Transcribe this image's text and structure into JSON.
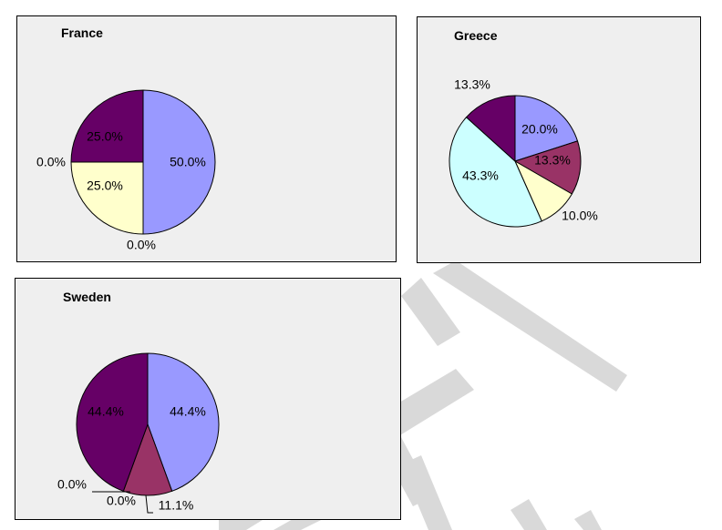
{
  "colors": {
    "periwinkle": "#9999ff",
    "plum": "#993366",
    "cream": "#ffffcc",
    "light_cyan": "#ccffff",
    "dark_purple": "#660066",
    "panel_bg": "#efefef",
    "watermark": "#d9d9d9"
  },
  "chart_data": [
    {
      "type": "pie",
      "title": "France",
      "slices": [
        {
          "value": 50.0,
          "label": "50.0%",
          "color": "#9999ff"
        },
        {
          "value": 0.0,
          "label": "0.0%",
          "color": "#993366"
        },
        {
          "value": 25.0,
          "label": "25.0%",
          "color": "#ffffcc"
        },
        {
          "value": 0.0,
          "label": "0.0%",
          "color": "#ccffff"
        },
        {
          "value": 25.0,
          "label": "25.0%",
          "color": "#660066"
        }
      ]
    },
    {
      "type": "pie",
      "title": "Greece",
      "slices": [
        {
          "value": 20.0,
          "label": "20.0%",
          "color": "#9999ff"
        },
        {
          "value": 13.3,
          "label": "13.3%",
          "color": "#993366"
        },
        {
          "value": 10.0,
          "label": "10.0%",
          "color": "#ffffcc"
        },
        {
          "value": 43.3,
          "label": "43.3%",
          "color": "#ccffff"
        },
        {
          "value": 13.3,
          "label": "13.3%",
          "color": "#660066"
        }
      ]
    },
    {
      "type": "pie",
      "title": "Sweden",
      "slices": [
        {
          "value": 44.4,
          "label": "44.4%",
          "color": "#9999ff"
        },
        {
          "value": 11.1,
          "label": "11.1%",
          "color": "#993366"
        },
        {
          "value": 0.0,
          "label": "0.0%",
          "color": "#ffffcc"
        },
        {
          "value": 0.0,
          "label": "0.0%",
          "color": "#ccffff"
        },
        {
          "value": 44.4,
          "label": "44.4%",
          "color": "#660066"
        }
      ]
    }
  ]
}
